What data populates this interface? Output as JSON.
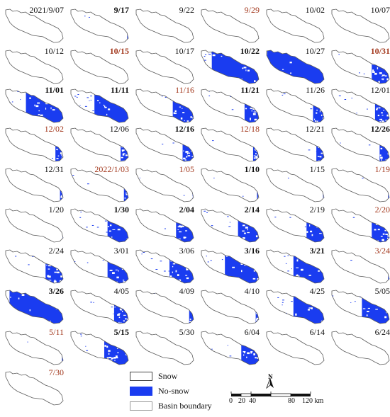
{
  "colors": {
    "snow": "#ffffff",
    "no_snow": "#1a3cf0",
    "boundary": "#5a5a5a",
    "label_default": "#111111",
    "label_red": "#a3391e"
  },
  "panels": [
    {
      "label": "2021/9/07",
      "color": "black",
      "bold": false,
      "no_snow_fraction": 0.0
    },
    {
      "label": "9/17",
      "color": "black",
      "bold": true,
      "no_snow_fraction": 0.05
    },
    {
      "label": "9/22",
      "color": "black",
      "bold": false,
      "no_snow_fraction": 0.0
    },
    {
      "label": "9/29",
      "color": "red",
      "bold": false,
      "no_snow_fraction": 0.0
    },
    {
      "label": "10/02",
      "color": "black",
      "bold": false,
      "no_snow_fraction": 0.0
    },
    {
      "label": "10/07",
      "color": "black",
      "bold": false,
      "no_snow_fraction": 0.0
    },
    {
      "label": "10/12",
      "color": "black",
      "bold": false,
      "no_snow_fraction": 0.0
    },
    {
      "label": "10/15",
      "color": "red",
      "bold": true,
      "no_snow_fraction": 0.03
    },
    {
      "label": "10/17",
      "color": "black",
      "bold": false,
      "no_snow_fraction": 0.0
    },
    {
      "label": "10/22",
      "color": "black",
      "bold": true,
      "no_snow_fraction": 0.75
    },
    {
      "label": "10/27",
      "color": "black",
      "bold": false,
      "no_snow_fraction": 0.9
    },
    {
      "label": "10/31",
      "color": "red",
      "bold": true,
      "no_snow_fraction": 0.3
    },
    {
      "label": "11/01",
      "color": "black",
      "bold": true,
      "no_snow_fraction": 0.6
    },
    {
      "label": "11/11",
      "color": "black",
      "bold": true,
      "no_snow_fraction": 0.55
    },
    {
      "label": "11/16",
      "color": "red",
      "bold": false,
      "no_snow_fraction": 0.35
    },
    {
      "label": "11/21",
      "color": "black",
      "bold": true,
      "no_snow_fraction": 0.25
    },
    {
      "label": "11/26",
      "color": "black",
      "bold": false,
      "no_snow_fraction": 0.2
    },
    {
      "label": "12/01",
      "color": "black",
      "bold": false,
      "no_snow_fraction": 0.25
    },
    {
      "label": "12/02",
      "color": "red",
      "bold": false,
      "no_snow_fraction": 0.15
    },
    {
      "label": "12/06",
      "color": "black",
      "bold": false,
      "no_snow_fraction": 0.15
    },
    {
      "label": "12/16",
      "color": "black",
      "bold": true,
      "no_snow_fraction": 0.2
    },
    {
      "label": "12/18",
      "color": "red",
      "bold": false,
      "no_snow_fraction": 0.12
    },
    {
      "label": "12/21",
      "color": "black",
      "bold": false,
      "no_snow_fraction": 0.15
    },
    {
      "label": "12/26",
      "color": "black",
      "bold": true,
      "no_snow_fraction": 0.18
    },
    {
      "label": "12/31",
      "color": "black",
      "bold": false,
      "no_snow_fraction": 0.08
    },
    {
      "label": "2022/1/03",
      "color": "red",
      "bold": false,
      "no_snow_fraction": 0.1
    },
    {
      "label": "1/05",
      "color": "red",
      "bold": false,
      "no_snow_fraction": 0.05
    },
    {
      "label": "1/10",
      "color": "black",
      "bold": true,
      "no_snow_fraction": 0.06
    },
    {
      "label": "1/15",
      "color": "black",
      "bold": false,
      "no_snow_fraction": 0.05
    },
    {
      "label": "1/19",
      "color": "red",
      "bold": false,
      "no_snow_fraction": 0.05
    },
    {
      "label": "1/20",
      "color": "black",
      "bold": false,
      "no_snow_fraction": 0.04
    },
    {
      "label": "1/30",
      "color": "black",
      "bold": true,
      "no_snow_fraction": 0.35
    },
    {
      "label": "2/04",
      "color": "black",
      "bold": true,
      "no_snow_fraction": 0.3
    },
    {
      "label": "2/14",
      "color": "black",
      "bold": true,
      "no_snow_fraction": 0.35
    },
    {
      "label": "2/19",
      "color": "black",
      "bold": false,
      "no_snow_fraction": 0.3
    },
    {
      "label": "2/20",
      "color": "red",
      "bold": false,
      "no_snow_fraction": 0.3
    },
    {
      "label": "2/24",
      "color": "black",
      "bold": false,
      "no_snow_fraction": 0.3
    },
    {
      "label": "3/01",
      "color": "black",
      "bold": false,
      "no_snow_fraction": 0.35
    },
    {
      "label": "3/06",
      "color": "black",
      "bold": false,
      "no_snow_fraction": 0.4
    },
    {
      "label": "3/16",
      "color": "black",
      "bold": true,
      "no_snow_fraction": 0.55
    },
    {
      "label": "3/21",
      "color": "black",
      "bold": true,
      "no_snow_fraction": 0.5
    },
    {
      "label": "3/24",
      "color": "red",
      "bold": false,
      "no_snow_fraction": 0.05
    },
    {
      "label": "3/26",
      "color": "black",
      "bold": true,
      "no_snow_fraction": 0.85
    },
    {
      "label": "4/05",
      "color": "black",
      "bold": false,
      "no_snow_fraction": 0.25
    },
    {
      "label": "4/09",
      "color": "black",
      "bold": false,
      "no_snow_fraction": 0.1
    },
    {
      "label": "4/10",
      "color": "black",
      "bold": false,
      "no_snow_fraction": 0.08
    },
    {
      "label": "4/25",
      "color": "black",
      "bold": false,
      "no_snow_fraction": 0.5
    },
    {
      "label": "5/05",
      "color": "black",
      "bold": false,
      "no_snow_fraction": 0.45
    },
    {
      "label": "5/11",
      "color": "red",
      "bold": false,
      "no_snow_fraction": 0.05
    },
    {
      "label": "5/15",
      "color": "black",
      "bold": true,
      "no_snow_fraction": 0.4
    },
    {
      "label": "5/30",
      "color": "black",
      "bold": false,
      "no_snow_fraction": 0.0
    },
    {
      "label": "6/04",
      "color": "black",
      "bold": false,
      "no_snow_fraction": 0.3
    },
    {
      "label": "6/14",
      "color": "black",
      "bold": false,
      "no_snow_fraction": 0.0
    },
    {
      "label": "6/24",
      "color": "black",
      "bold": false,
      "no_snow_fraction": 0.0
    },
    {
      "label": "7/30",
      "color": "red",
      "bold": false,
      "no_snow_fraction": 0.03
    }
  ],
  "legend": {
    "items": [
      {
        "label": "Snow",
        "swatch": "snow"
      },
      {
        "label": "No-snow",
        "swatch": "no_snow"
      },
      {
        "label": "Basin boundary",
        "swatch": "boundary"
      }
    ]
  },
  "north_arrow": {
    "label": "N"
  },
  "scale_bar": {
    "ticks": [
      "0",
      "20",
      "40",
      "80",
      "120 km"
    ]
  }
}
